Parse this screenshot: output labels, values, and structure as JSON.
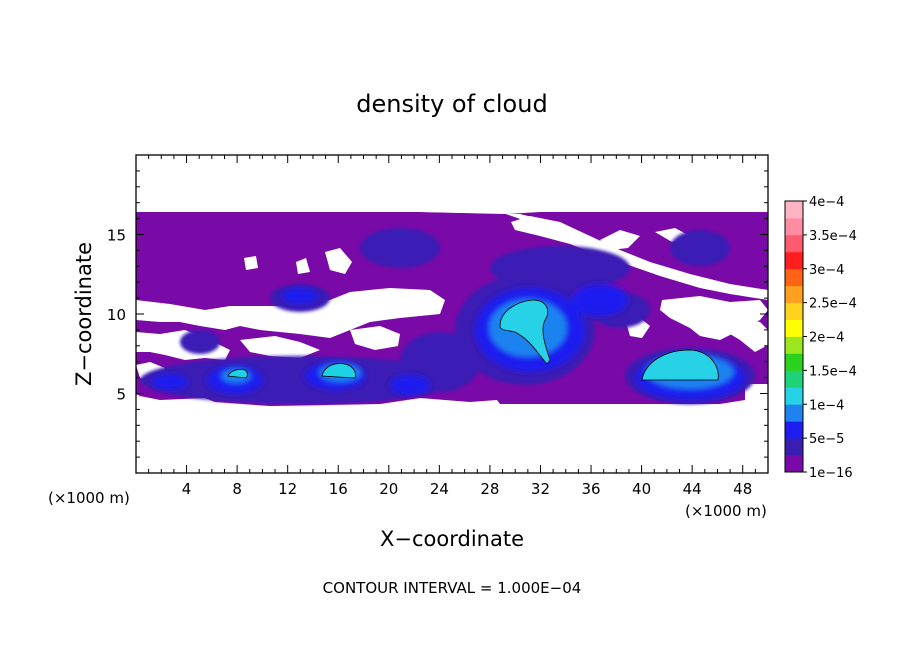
{
  "chart_data": {
    "type": "heatmap",
    "title": "density of cloud",
    "xlabel": "X−coordinate",
    "ylabel": "Z−coordinate",
    "x_unit": "(×1000 m)",
    "y_unit": "(×1000 m)",
    "footer": "CONTOUR INTERVAL = 1.000E−04",
    "xlim": [
      0,
      50
    ],
    "ylim": [
      0,
      20
    ],
    "x_ticks": [
      4,
      8,
      12,
      16,
      20,
      24,
      28,
      32,
      36,
      40,
      44,
      48
    ],
    "y_ticks": [
      5,
      10,
      15
    ],
    "colorbar": {
      "labels": [
        "1e−16",
        "5e−5",
        "1e−4",
        "1.5e−4",
        "2e−4",
        "2.5e−4",
        "3e−4",
        "3.5e−4",
        "4e−4"
      ],
      "colors": [
        "#7a0aa8",
        "#3a1eb4",
        "#1e1ef0",
        "#1e82f0",
        "#28d2e6",
        "#1ed278",
        "#2ad21e",
        "#9be61e",
        "#ffff00",
        "#ffd21e",
        "#ffa01e",
        "#ff6414",
        "#ff1e1e",
        "#ff5a6e",
        "#ff8ca0",
        "#ffb4c3"
      ]
    },
    "contour_level": 0.0001,
    "features": [
      {
        "x": [
          0,
          50
        ],
        "z": [
          4.5,
          16.3
        ],
        "value": "1e-16 to 5e-5"
      },
      {
        "x": [
          7.2,
          9.0
        ],
        "z": [
          5.9,
          6.6
        ],
        "value": ">1e-4"
      },
      {
        "x": [
          14.8,
          17.5
        ],
        "z": [
          5.6,
          6.7
        ],
        "value": ">1e-4"
      },
      {
        "x": [
          28.2,
          33.0
        ],
        "z": [
          6.8,
          10.8
        ],
        "value": ">1e-4"
      },
      {
        "x": [
          40.0,
          46.2
        ],
        "z": [
          5.8,
          7.4
        ],
        "value": ">1e-4"
      }
    ]
  }
}
